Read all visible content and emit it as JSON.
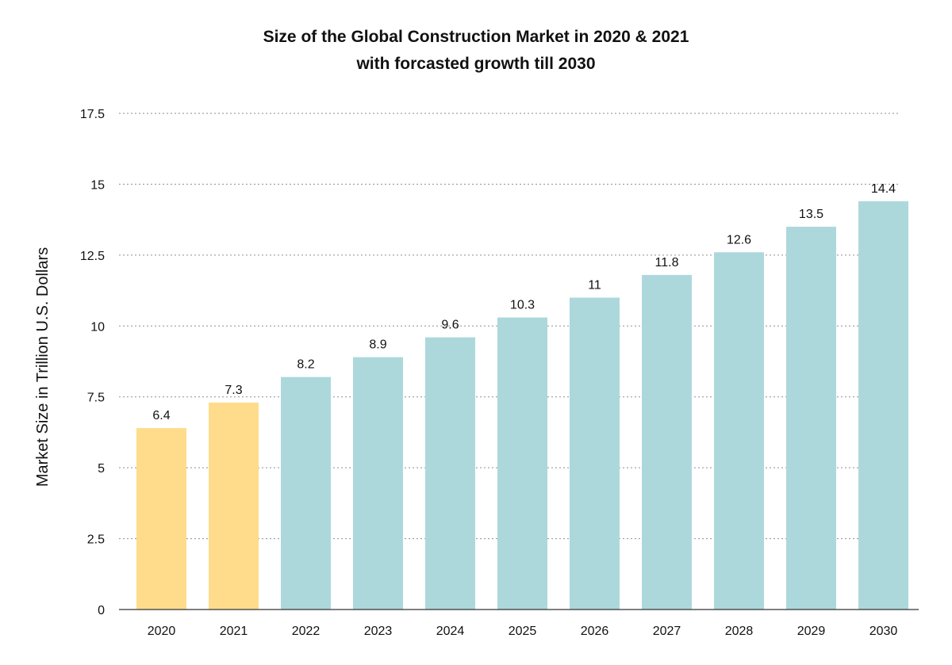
{
  "chart_data": {
    "type": "bar",
    "title": "Size of the Global Construction Market in 2020 & 2021",
    "subtitle": "with forcasted growth till 2030",
    "xlabel": "",
    "ylabel": "Market Size in Trillion U.S. Dollars",
    "categories": [
      "2020",
      "2021",
      "2022",
      "2023",
      "2024",
      "2025",
      "2026",
      "2027",
      "2028",
      "2029",
      "2030"
    ],
    "values": [
      6.4,
      7.3,
      8.2,
      8.9,
      9.6,
      10.3,
      11,
      11.8,
      12.6,
      13.5,
      14.4
    ],
    "value_labels": [
      "6.4",
      "7.3",
      "8.2",
      "8.9",
      "9.6",
      "10.3",
      "11",
      "11.8",
      "12.6",
      "13.5",
      "14.4"
    ],
    "ylim": [
      0,
      17.5
    ],
    "yticks": [
      0,
      2.5,
      5,
      7.5,
      10,
      12.5,
      15,
      17.5
    ],
    "ytick_labels": [
      "0",
      "2.5",
      "5",
      "7.5",
      "10",
      "12.5",
      "15",
      "17.5"
    ],
    "grid": true,
    "grid_style": "dotted",
    "bar_colors": [
      "#fedc8c",
      "#fedc8c",
      "#acd8dc",
      "#acd8dc",
      "#acd8dc",
      "#acd8dc",
      "#acd8dc",
      "#acd8dc",
      "#acd8dc",
      "#acd8dc",
      "#acd8dc"
    ],
    "legend": "none"
  }
}
